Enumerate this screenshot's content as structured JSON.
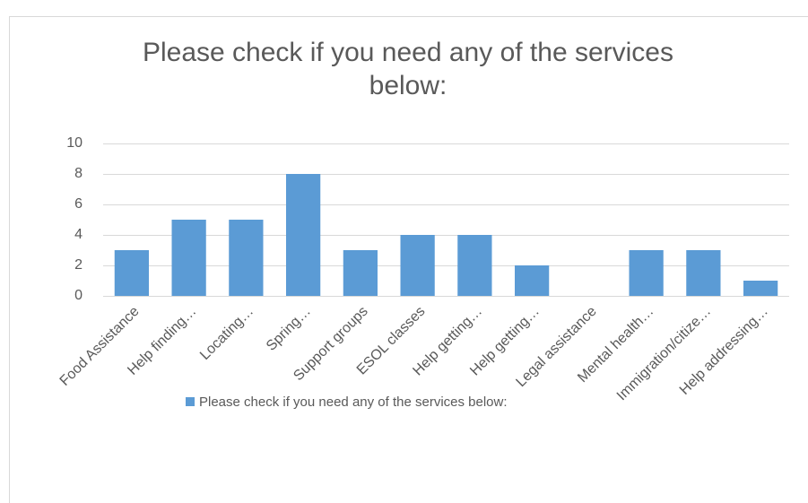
{
  "chart_data": {
    "type": "bar",
    "title": "Please check if you need any of the services below:",
    "categories": [
      "Food Assistance",
      "Help finding…",
      "Locating…",
      "Spring…",
      "Support groups",
      "ESOL classes",
      "Help getting…",
      "Help getting…",
      "Legal assistance",
      "Mental health…",
      "Immigration/citize…",
      "Help addressing…"
    ],
    "series": [
      {
        "name": "Please check if you need any of the services below:",
        "color": "#5b9bd5",
        "values": [
          3,
          5,
          5,
          8,
          3,
          4,
          4,
          2,
          0,
          3,
          3,
          1
        ]
      }
    ],
    "ylim": [
      0,
      10
    ],
    "yticks": [
      0,
      2,
      4,
      6,
      8,
      10
    ],
    "grid": true,
    "legend": "bottom"
  }
}
